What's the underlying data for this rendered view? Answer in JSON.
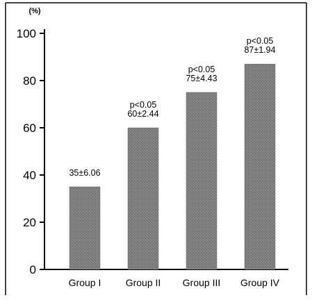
{
  "chart_data": {
    "type": "bar",
    "y_unit_label": "(%)",
    "categories": [
      "Group I",
      "Group II",
      "Group III",
      "Group IV"
    ],
    "values": [
      35,
      60,
      75,
      87
    ],
    "bar_labels": [
      [
        "35±6.06"
      ],
      [
        "p<0.05",
        "60±2.44"
      ],
      [
        "p<0.05",
        "75±4.43"
      ],
      [
        "p<0.05",
        "87±1.94"
      ]
    ],
    "ylim": [
      0,
      100
    ],
    "y_ticks": [
      0,
      20,
      40,
      60,
      80,
      100
    ],
    "bar_color": "#8e8e8e",
    "grid": false,
    "legend": "none"
  }
}
